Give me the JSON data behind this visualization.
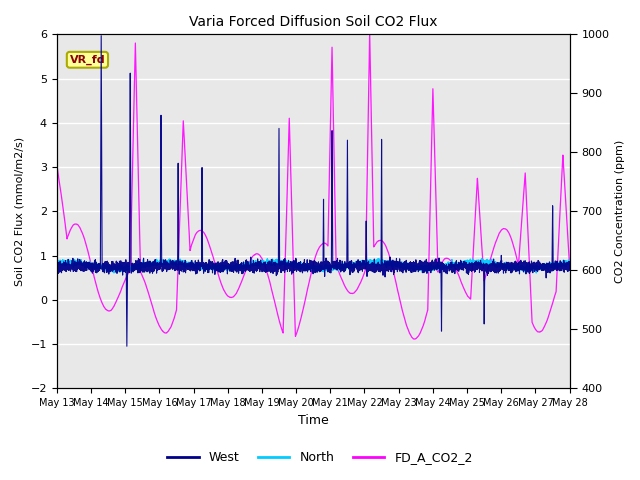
{
  "title": "Varia Forced Diffusion Soil CO2 Flux",
  "xlabel": "Time",
  "ylabel_left": "Soil CO2 Flux (mmol/m2/s)",
  "ylabel_right": "CO2 Concentration (ppm)",
  "ylim_left": [
    -2.0,
    6.0
  ],
  "ylim_right": [
    400,
    1000
  ],
  "yticks_left": [
    -2.0,
    -1.0,
    0.0,
    1.0,
    2.0,
    3.0,
    4.0,
    5.0,
    6.0
  ],
  "yticks_right": [
    400,
    500,
    600,
    700,
    800,
    900,
    1000
  ],
  "xtick_labels": [
    "May 13",
    "May 14",
    "May 15",
    "May 16",
    "May 17",
    "May 18",
    "May 19",
    "May 20",
    "May 21",
    "May 22",
    "May 23",
    "May 24",
    "May 25",
    "May 26",
    "May 27",
    "May 28"
  ],
  "legend_labels": [
    "West",
    "North",
    "FD_A_CO2_2"
  ],
  "legend_colors": [
    "#00008B",
    "#00CCFF",
    "#FF00FF"
  ],
  "line_colors_west": "#00008B",
  "line_colors_north": "#00CCFF",
  "line_colors_co2": "#FF00FF",
  "annotation_text": "VR_fd",
  "annotation_box_color": "#FFFF99",
  "annotation_box_edge": "#AAAA00",
  "background_color": "#E8E8E8",
  "grid_color": "white",
  "n_points": 5000,
  "seed": 42,
  "days": 15
}
